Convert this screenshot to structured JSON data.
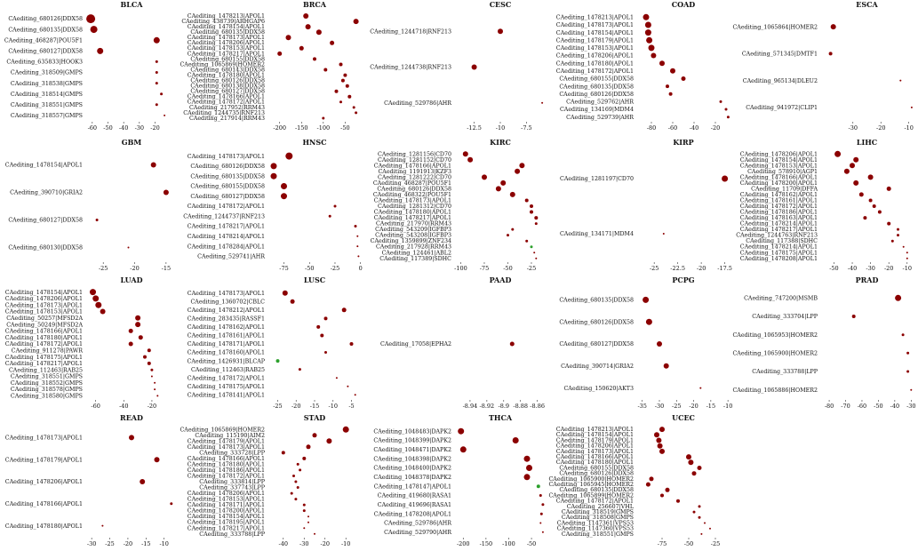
{
  "figure": {
    "kind": "grid of dot plots",
    "colors": {
      "pos": "#8b0000",
      "neg": "#2ca02c"
    }
  },
  "chart_data": [
    {
      "type": "scatter",
      "title": "BLCA",
      "xlim": [
        -65,
        -5
      ],
      "ticks": [
        -60,
        -50,
        -40,
        -30,
        -20
      ],
      "labels": [
        "CAediting_680126|DDX58",
        "CAediting_680135|DDX58",
        "CAediting_468287|POU5F1",
        "CAediting_680127|DDX58",
        "CAediting_635833|HOOK3",
        "CAediting_318509|GMPS",
        "CAediting_318538|GMPS",
        "CAediting_318514|GMPS",
        "CAediting_318551|GMPS",
        "CAediting_318557|GMPS"
      ],
      "values": [
        -61,
        -59,
        -19,
        -55,
        -19,
        -19,
        -19,
        -16,
        -19,
        -14
      ],
      "sizes": [
        5,
        4,
        3.5,
        3.5,
        1.5,
        1.5,
        1.5,
        1.5,
        1.5,
        1
      ]
    },
    {
      "type": "scatter",
      "title": "BRCA",
      "xlim": [
        -230,
        -10
      ],
      "ticks": [
        -200,
        -150,
        -100,
        -50
      ],
      "labels": [
        "CAediting_1478213|APOL1",
        "CAediting_438739|ARHGAP6",
        "CAediting_1478154|APOL1",
        "CAediting_680135|DDX58",
        "CAediting_1478173|APOL1",
        "CAediting_1478206|APOL1",
        "CAediting_1478153|APOL1",
        "CAediting_1478217|APOL1",
        "CAediting_680155|DDX58",
        "CAediting_1065869|HOMER2",
        "CAediting_680143|DDX58",
        "CAediting_1478180|APOL1",
        "CAediting_680126|DDX58",
        "CAediting_680138|DDX58",
        "CAediting_680127|DDX58",
        "CAediting_1478166|APOL1",
        "CAediting_1478172|APOL1",
        "CAediting_217952|RRM43",
        "CAediting_1244735|RNF213",
        "CAediting_217914|RRM43"
      ],
      "values": [
        -140,
        -25,
        -135,
        -110,
        -180,
        -80,
        -150,
        -200,
        -120,
        -60,
        -95,
        -50,
        -55,
        -45,
        -70,
        -40,
        -60,
        -30,
        -25,
        -100
      ],
      "sizes": [
        3,
        3,
        3,
        3,
        3,
        2.5,
        2.5,
        2.5,
        2,
        2,
        2,
        2,
        2,
        2,
        2,
        2,
        1.5,
        1.5,
        1.5,
        1.5
      ]
    },
    {
      "type": "scatter",
      "title": "CESC",
      "xlim": [
        -14.5,
        -5.5
      ],
      "ticks": [
        -12.5,
        -10,
        -7.5
      ],
      "labels": [
        "CAediting_1244718|RNF213",
        "CAediting_1244738|RNF213",
        "CAediting_529786|AHR"
      ],
      "values": [
        -10,
        -12.5,
        -6
      ],
      "sizes": [
        3,
        3,
        1
      ]
    },
    {
      "type": "scatter",
      "title": "COAD",
      "xlim": [
        -95,
        -5
      ],
      "ticks": [
        -80,
        -60,
        -40,
        -20
      ],
      "labels": [
        "CAediting_1478213|APOL1",
        "CAediting_1478173|APOL1",
        "CAediting_1478154|APOL1",
        "CAediting_1478179|APOL1",
        "CAediting_1478153|APOL1",
        "CAediting_1478206|APOL1",
        "CAediting_1478180|APOL1",
        "CAediting_1478172|APOL1",
        "CAediting_680155|DDX58",
        "CAediting_680135|DDX58",
        "CAediting_680126|DDX58",
        "CAediting_529762|AHR",
        "CAediting_134169|MDM4",
        "CAediting_529739|AHR"
      ],
      "values": [
        -85,
        -83,
        -83,
        -82,
        -80,
        -78,
        -70,
        -60,
        -50,
        -65,
        -62,
        -15,
        -10,
        -8
      ],
      "sizes": [
        3.5,
        3.5,
        3.5,
        3.5,
        3.5,
        3,
        3,
        3,
        2.5,
        2,
        2,
        1.5,
        1.5,
        1.5
      ]
    },
    {
      "type": "scatter",
      "title": "ESCA",
      "xlim": [
        -42,
        -8
      ],
      "ticks": [
        -30,
        -20,
        -10
      ],
      "labels": [
        "CAediting_1065864|HOMER2",
        "CAediting_571345|DMTF1",
        "CAediting_965134|DLEU2",
        "CAediting_941972|CLIP1"
      ],
      "values": [
        -37,
        -38,
        -13,
        -9
      ],
      "sizes": [
        3,
        2,
        1,
        1
      ]
    },
    {
      "type": "scatter",
      "title": "GBM",
      "xlim": [
        -28,
        -13
      ],
      "ticks": [
        -25,
        -20,
        -15
      ],
      "labels": [
        "CAediting_1478154|APOL1",
        "CAediting_390710|GRIA2",
        "CAediting_680127|DDX58",
        "CAediting_680130|DDX58"
      ],
      "values": [
        -17,
        -15,
        -26,
        -21
      ],
      "sizes": [
        3,
        3,
        1.5,
        1
      ]
    },
    {
      "type": "scatter",
      "title": "HNSC",
      "xlim": [
        -92,
        2
      ],
      "ticks": [
        -75,
        -50,
        -25,
        0
      ],
      "labels": [
        "CAediting_1478173|APOL1",
        "CAediting_680126|DDX58",
        "CAediting_680135|DDX58",
        "CAediting_680155|DDX58",
        "CAediting_680127|DDX58",
        "CAediting_1478172|APOL1",
        "CAediting_1244737|RNF213",
        "CAediting_1478217|APOL1",
        "CAediting_1478214|APOL1",
        "CAediting_1478284|APOL1",
        "CAediting_529741|AHR"
      ],
      "values": [
        -70,
        -85,
        -85,
        -75,
        -75,
        -25,
        -30,
        -5,
        -3,
        -3,
        -2
      ],
      "sizes": [
        4,
        3.5,
        3.5,
        3.5,
        3.5,
        1.5,
        1.5,
        1.5,
        1,
        1,
        1
      ]
    },
    {
      "type": "scatter",
      "title": "KIRC",
      "xlim": [
        -108,
        -8
      ],
      "ticks": [
        -100,
        -75,
        -50,
        -25
      ],
      "labels": [
        "CAediting_1281156|CD70",
        "CAediting_1281152|CD70",
        "CAediting_1478166|APOL1",
        "CAediting_1191913|KZF3",
        "CAediting_1281222|CD70",
        "CAediting_468287|POU5F1",
        "CAediting_680126|DDX58",
        "CAediting_468322|POU5F1",
        "CAediting_1478173|APOL1",
        "CAediting_1281312|CD70",
        "CAediting_1478180|APOL1",
        "CAediting_1478217|APOL1",
        "CAediting_217970|RRM43",
        "CAediting_543209|IGFBP3",
        "CAediting_543208|IGFBP3",
        "CAediting_1359899|ZNF234",
        "CAediting_217928|RRM43",
        "CAediting_124461|ABL2",
        "CAediting_117389|SDHC"
      ],
      "values": [
        -95,
        -90,
        -35,
        -40,
        -75,
        -55,
        -60,
        -45,
        -30,
        -25,
        -25,
        -20,
        -20,
        -45,
        -50,
        -30,
        -25,
        -22,
        -20
      ],
      "sizes": [
        3,
        3,
        3,
        3,
        3,
        3,
        3,
        3,
        2,
        2,
        2,
        2,
        1.5,
        1.5,
        1.5,
        1.5,
        1.5,
        1,
        1
      ],
      "neg_index": 16
    },
    {
      "type": "scatter",
      "title": "KIRP",
      "xlim": [
        -27,
        -16.8
      ],
      "ticks": [
        -25,
        -22.5,
        -20,
        -17.5
      ],
      "labels": [
        "CAediting_1281197|CD70",
        "CAediting_134171|MDM4"
      ],
      "values": [
        -17.5,
        -24
      ],
      "sizes": [
        3.5,
        1
      ]
    },
    {
      "type": "scatter",
      "title": "LIHC",
      "xlim": [
        -58,
        -6
      ],
      "ticks": [
        -50,
        -40,
        -30,
        -20,
        -10
      ],
      "labels": [
        "CAediting_1478206|APOL1",
        "CAediting_1478154|APOL1",
        "CAediting_1478153|APOL1",
        "CAediting_578910|AGP1",
        "CAediting_1478166|APOL1",
        "CAediting_1478200|APOL1",
        "CAediting_11709|DFFA",
        "CAediting_1478162|APOL1",
        "CAediting_1478161|APOL1",
        "CAediting_1478172|APOL1",
        "CAediting_1478186|APOL1",
        "CAediting_1478163|APOL1",
        "CAediting_1478214|APOL1",
        "CAediting_1478217|APOL1",
        "CAediting_1244763|RNF213",
        "CAediting_117388|SDHC",
        "CAediting_1478214|APOL1",
        "CAediting_1478175|APOL1",
        "CAediting_1478208|APOL1"
      ],
      "values": [
        -48,
        -38,
        -40,
        -43,
        -30,
        -38,
        -20,
        -35,
        -30,
        -28,
        -25,
        -33,
        -20,
        -15,
        -15,
        -18,
        -12,
        -10,
        -10
      ],
      "sizes": [
        3.5,
        3,
        3,
        3,
        3,
        3,
        2.5,
        2.5,
        2,
        2,
        2,
        2,
        2,
        1.5,
        1.5,
        1.5,
        1,
        1,
        1
      ]
    },
    {
      "type": "scatter",
      "title": "LUAD",
      "xlim": [
        -68,
        -1
      ],
      "ticks": [
        -60,
        -40,
        -20
      ],
      "labels": [
        "CAediting_1478154|APOL1",
        "CAediting_1478206|APOL1",
        "CAediting_1478173|APOL1",
        "CAediting_1478153|APOL1",
        "CAediting_50257|MFSD2A",
        "CAediting_50249|MFSD2A",
        "CAediting_1478166|APOL1",
        "CAediting_1478180|APOL1",
        "CAediting_1478172|APOL1",
        "CAediting_911278|PAWR",
        "CAediting_1478175|APOL1",
        "CAediting_1478217|APOL1",
        "CAediting_112463|RAB25",
        "CAediting_318551|GMPS",
        "CAediting_318552|GMPS",
        "CAediting_318578|GMPS",
        "CAediting_318580|GMPS"
      ],
      "values": [
        -62,
        -60,
        -58,
        -55,
        -30,
        -30,
        -35,
        -28,
        -35,
        -22,
        -25,
        -22,
        -20,
        -20,
        -18,
        -18,
        -16
      ],
      "sizes": [
        3.5,
        3.5,
        3.5,
        3,
        3,
        3,
        2.5,
        2.5,
        2.5,
        2,
        2,
        2,
        1.5,
        1,
        1,
        1,
        1
      ]
    },
    {
      "type": "scatter",
      "title": "LUSC",
      "xlim": [
        -28,
        -2
      ],
      "ticks": [
        -25,
        -20,
        -15,
        -10,
        -5
      ],
      "labels": [
        "CAediting_1478173|APOL1",
        "CAediting_1360702|CBLC",
        "CAediting_1478212|APOL1",
        "CAediting_283435|RASSF1",
        "CAediting_1478162|APOL1",
        "CAediting_1478161|APOL1",
        "CAediting_1478171|APOL1",
        "CAediting_1478160|APOL1",
        "CAediting_1426931|BLCAP",
        "CAediting_112463|RAB25",
        "CAediting_1478172|APOL1",
        "CAediting_1478175|APOL1",
        "CAediting_1478141|APOL1"
      ],
      "values": [
        -23,
        -21,
        -7,
        -12,
        -14,
        -13,
        -5,
        -12,
        -25,
        -19,
        -9,
        -6,
        -4
      ],
      "sizes": [
        3,
        2.5,
        2.5,
        2,
        2,
        2,
        2,
        1.5,
        2,
        1.5,
        1,
        1,
        1
      ],
      "neg_index": 8
    },
    {
      "type": "scatter",
      "title": "PAAD",
      "xlim": [
        -8.96,
        -8.848
      ],
      "ticks": [
        -8.94,
        -8.92,
        -8.9,
        -8.88,
        -8.86
      ],
      "labels": [
        "CAediting_17058|EPHA2"
      ],
      "values": [
        -8.89
      ],
      "sizes": [
        2.5
      ]
    },
    {
      "type": "scatter",
      "title": "PCPG",
      "xlim": [
        -37,
        -9
      ],
      "ticks": [
        -35,
        -30,
        -25,
        -20,
        -15,
        -10
      ],
      "labels": [
        "CAediting_680135|DDX58",
        "CAediting_680126|DDX58",
        "CAediting_680127|DDX58",
        "CAediting_390714|GRIA2",
        "CAediting_150620|AKT3"
      ],
      "values": [
        -34,
        -33,
        -30,
        -28,
        -18
      ],
      "sizes": [
        3.5,
        3.5,
        3,
        3,
        1
      ]
    },
    {
      "type": "scatter",
      "title": "PRAD",
      "xlim": [
        -86,
        -28
      ],
      "ticks": [
        -80,
        -70,
        -60,
        -50,
        -40,
        -30
      ],
      "labels": [
        "CAediting_747200|MSMB",
        "CAediting_333704|LPP",
        "CAediting_1065953|HOMER2",
        "CAediting_1065900|HOMER2",
        "CAediting_333788|LPP",
        "CAediting_1065886|HOMER2"
      ],
      "values": [
        -38,
        -65,
        -35,
        -32,
        -32,
        -30
      ],
      "sizes": [
        3.5,
        2,
        1.5,
        1.5,
        1.5,
        1
      ]
    },
    {
      "type": "scatter",
      "title": "READ",
      "xlim": [
        -32,
        -6
      ],
      "ticks": [
        -30,
        -25,
        -20,
        -15,
        -10
      ],
      "labels": [
        "CAediting_1478173|APOL1",
        "CAediting_1478179|APOL1",
        "CAediting_1478206|APOL1",
        "CAediting_1478166|APOL1",
        "CAediting_1478180|APOL1"
      ],
      "values": [
        -19,
        -12,
        -16,
        -8,
        -27
      ],
      "sizes": [
        3,
        3,
        3,
        1.5,
        1
      ]
    },
    {
      "type": "scatter",
      "title": "STAD",
      "xlim": [
        -48,
        -2
      ],
      "ticks": [
        -40,
        -30,
        -20,
        -10
      ],
      "labels": [
        "CAediting_1065869|HOMER2",
        "CAediting_115190|AIM2",
        "CAediting_1478179|APOL1",
        "CAediting_1478173|APOL1",
        "CAediting_333728|LPP",
        "CAediting_1478166|APOL1",
        "CAediting_1478180|APOL1",
        "CAediting_1478186|APOL1",
        "CAediting_1478172|APOL1",
        "CAediting_333814|LPP",
        "CAediting_337743|LPP",
        "CAediting_1478206|APOL1",
        "CAediting_1478153|APOL1",
        "CAediting_1478171|APOL1",
        "CAediting_1478200|APOL1",
        "CAediting_1478154|APOL1",
        "CAediting_1478195|APOL1",
        "CAediting_1478217|APOL1",
        "CAediting_333788|LPP"
      ],
      "values": [
        -10,
        -25,
        -18,
        -28,
        -40,
        -30,
        -33,
        -32,
        -35,
        -34,
        -33,
        -36,
        -34,
        -30,
        -30,
        -28,
        -28,
        -30,
        -25
      ],
      "sizes": [
        3.5,
        2.5,
        3,
        2.5,
        2,
        2,
        1.5,
        1.5,
        1.5,
        1.5,
        1.5,
        1.5,
        1.5,
        1.5,
        1.5,
        1,
        1,
        1,
        1
      ]
    },
    {
      "type": "scatter",
      "title": "THCA",
      "xlim": [
        -222,
        -15
      ],
      "ticks": [
        -200,
        -150,
        -100,
        -50
      ],
      "labels": [
        "CAediting_1048483|DAPK2",
        "CAediting_1048399|DAPK2",
        "CAediting_1048471|DAPK2",
        "CAediting_1048398|DAPK2",
        "CAediting_1048400|DAPK2",
        "CAediting_1048378|DAPK2",
        "CAediting_1478147|APOL1",
        "CAediting_419680|RASA1",
        "CAediting_419696|RASA1",
        "CAediting_1478208|APOL1",
        "CAediting_529786|AHR",
        "CAediting_529790|AHR"
      ],
      "values": [
        -205,
        -85,
        -200,
        -60,
        -55,
        -60,
        -35,
        -30,
        -25,
        -28,
        -30,
        -25
      ],
      "sizes": [
        3.5,
        3.5,
        3.5,
        3.5,
        3.5,
        3.5,
        2,
        1.5,
        1.5,
        1.5,
        1,
        1
      ],
      "neg_index": 6
    },
    {
      "type": "scatter",
      "title": "UCEC",
      "xlim": [
        -100,
        -10
      ],
      "ticks": [
        -75,
        -50,
        -25
      ],
      "labels": [
        "CAediting_1478213|APOL1",
        "CAediting_1478154|APOL1",
        "CAediting_1478179|APOL1",
        "CAediting_1478206|APOL1",
        "CAediting_1478173|APOL1",
        "CAediting_1478166|APOL1",
        "CAediting_1478180|APOL1",
        "CAediting_680155|DDX58",
        "CAediting_680126|DDX58",
        "CAediting_1065900|HOMER2",
        "CAediting_1065945|HOMER2",
        "CAediting_680135|DDX58",
        "CAediting_1065899|HOMER2",
        "CAediting_1478172|APOL1",
        "CAediting_256607|VHL",
        "CAediting_318519|GMPS",
        "CAediting_318508|GMPS",
        "CAediting_1147361|VPS53",
        "CAediting_1147360|VPS53",
        "CAediting_318551|GMPS"
      ],
      "values": [
        -75,
        -80,
        -78,
        -77,
        -75,
        -50,
        -48,
        -40,
        -45,
        -85,
        -88,
        -70,
        -75,
        -60,
        -40,
        -45,
        -40,
        -35,
        -30,
        -38
      ],
      "sizes": [
        3,
        3,
        3,
        3,
        3,
        3,
        3,
        2.5,
        2.5,
        2.5,
        2.5,
        2.5,
        2,
        2,
        1.5,
        1.5,
        1.5,
        1,
        1,
        1
      ]
    }
  ]
}
